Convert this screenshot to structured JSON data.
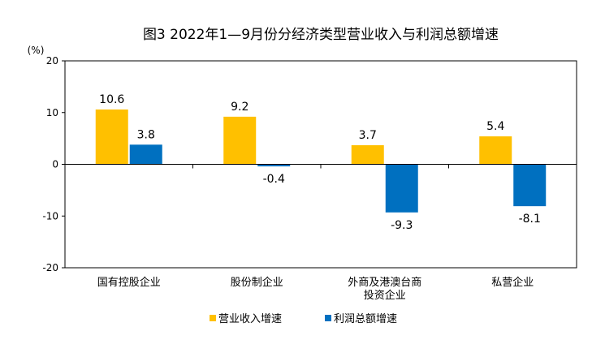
{
  "chart_data": {
    "type": "bar",
    "title": "图3  2022年1—9月份分经济类型营业收入与利润总额增速",
    "unit_label": "(%)",
    "categories": [
      [
        "国有控股企业"
      ],
      [
        "股份制企业"
      ],
      [
        "外商及港澳台商",
        "投资企业"
      ],
      [
        "私营企业"
      ]
    ],
    "series": [
      {
        "name": "营业收入增速",
        "color": "#FFC000",
        "values": [
          10.6,
          9.2,
          3.7,
          5.4
        ]
      },
      {
        "name": "利润总额增速",
        "color": "#0070C0",
        "values": [
          3.8,
          -0.4,
          -9.3,
          -8.1
        ]
      }
    ],
    "data_labels": [
      [
        "10.6",
        "9.2",
        "3.7",
        "5.4"
      ],
      [
        "3.8",
        "-0.4",
        "-9.3",
        "-8.1"
      ]
    ],
    "y_ticks": [
      "20",
      "10",
      "0",
      "-10",
      "-20"
    ],
    "ylim": [
      -20,
      20
    ],
    "legend_position": "bottom",
    "grid": false
  }
}
